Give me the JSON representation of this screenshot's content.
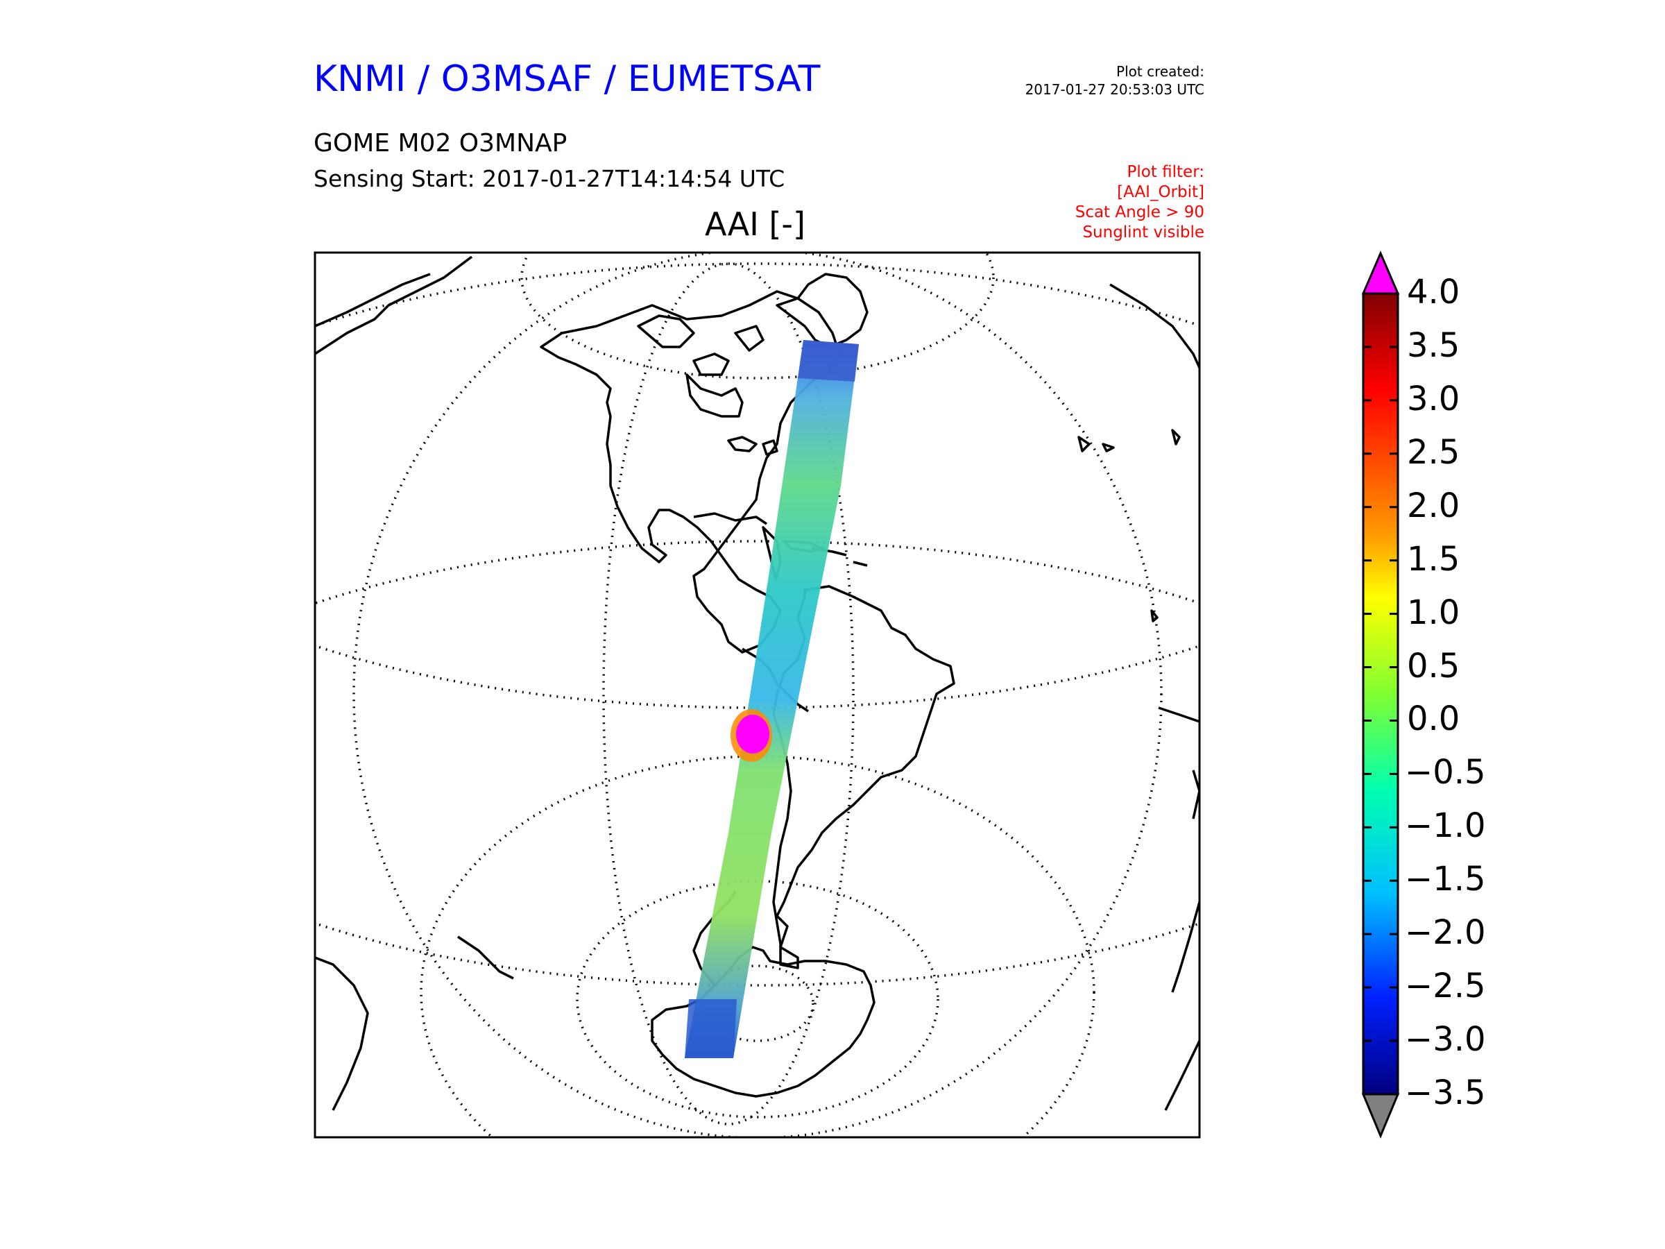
{
  "header": {
    "organization": "KNMI / O3MSAF / EUMETSAT",
    "plot_created_label": "Plot created:",
    "plot_created_time": "2017-01-27 20:53:03 UTC",
    "product": "GOME M02 O3MNAP",
    "sensing_start": "Sensing Start: 2017-01-27T14:14:54 UTC",
    "filter_lines": [
      "Plot filter:",
      "[AAI_Orbit]",
      "Scat Angle > 90",
      "Sunglint visible"
    ]
  },
  "map": {
    "title": "AAI [-]",
    "projection": "orthographic",
    "swath": "single orbit track from Arctic Canada through the eastern United States, Central America and the eastern Pacific to Antarctica",
    "hotspot": "high AAI values (magenta, >4.0) over the eastern Pacific off the coast of Chile"
  },
  "colorbar": {
    "ticks": [
      "4.0",
      "3.5",
      "3.0",
      "2.5",
      "2.0",
      "1.5",
      "1.0",
      "0.5",
      "0.0",
      "−0.5",
      "−1.0",
      "−1.5",
      "−2.0",
      "−2.5",
      "−3.0",
      "−3.5"
    ],
    "min": -3.5,
    "max": 4.0,
    "over_color": "#ff00ff",
    "under_color": "#808080"
  }
}
